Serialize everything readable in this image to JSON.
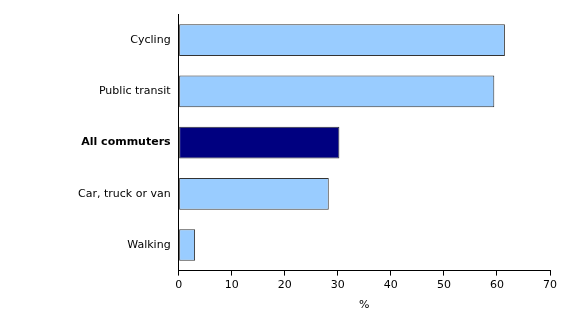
{
  "chart_data": {
    "type": "bar",
    "orientation": "horizontal",
    "categories": [
      "Cycling",
      "Public transit",
      "All commuters",
      "Car, truck or van",
      "Walking"
    ],
    "values": [
      61.5,
      59.5,
      30.3,
      28.3,
      3.1
    ],
    "colors": [
      "#99ccff",
      "#99ccff",
      "#000080",
      "#99ccff",
      "#99ccff"
    ],
    "xlabel": "%",
    "xlim": [
      0,
      70
    ],
    "xticks": [
      0,
      10,
      20,
      30,
      40,
      50,
      60,
      70
    ],
    "grid": false
  }
}
